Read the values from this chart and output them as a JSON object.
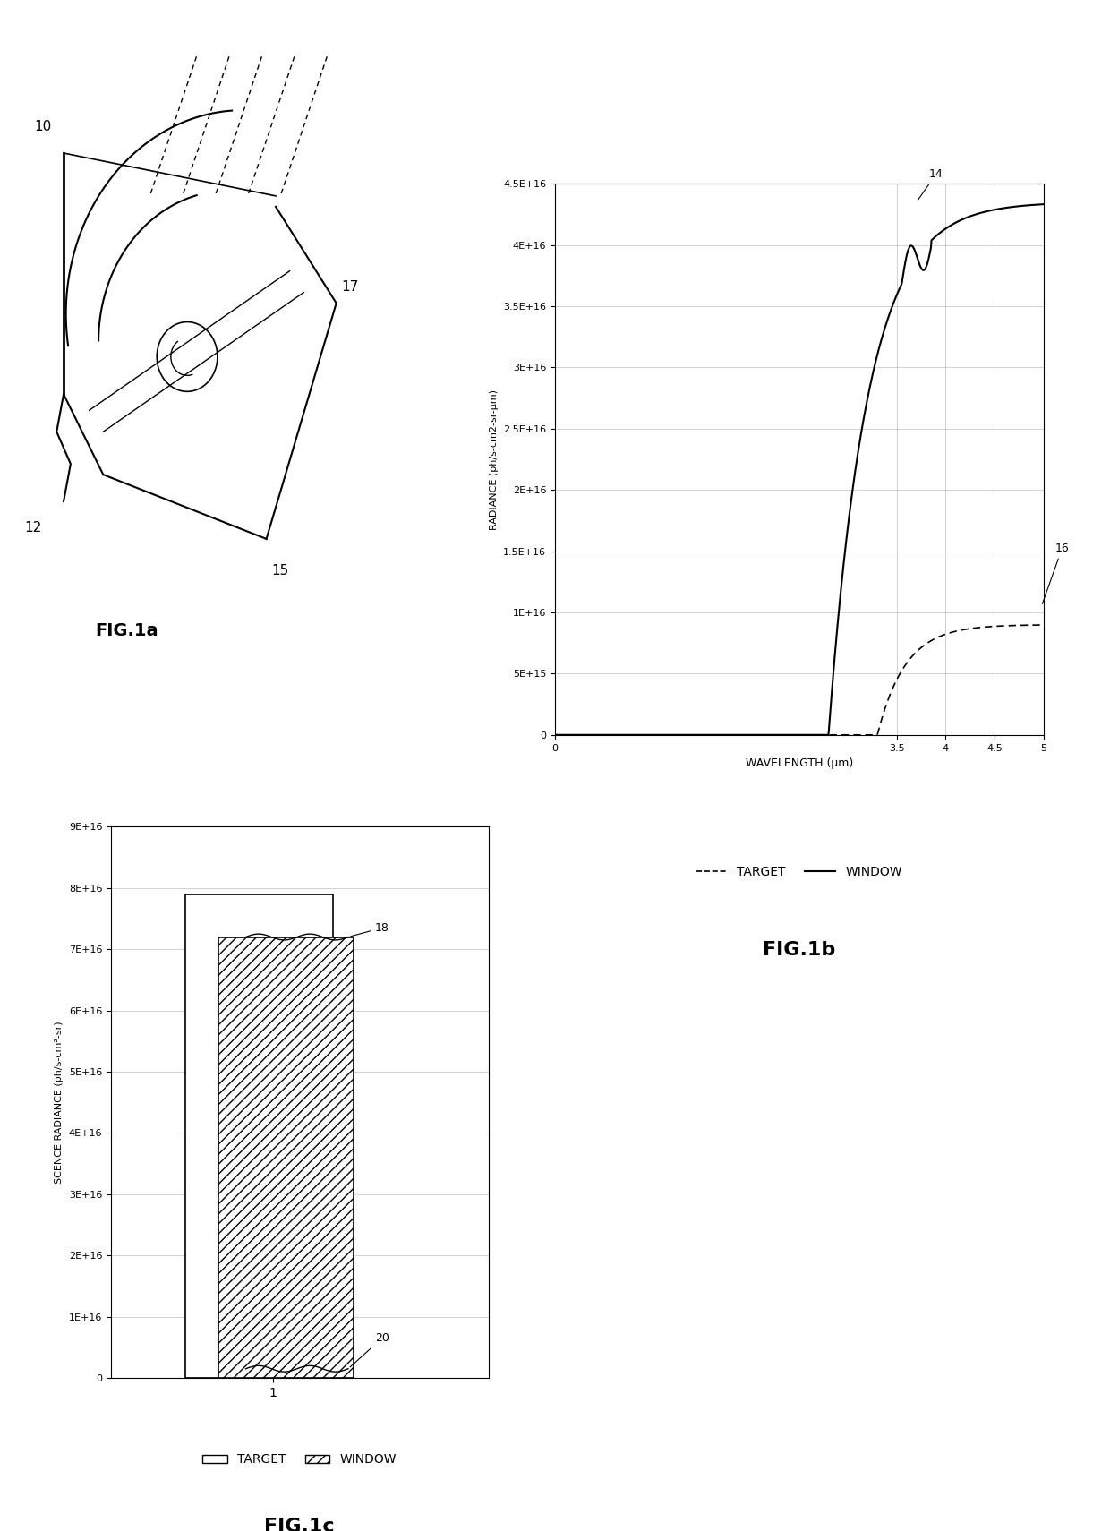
{
  "fig1b": {
    "xlabel": "WAVELENGTH (μm)",
    "ylabel": "RADIANCE (ph/s-cm2-sr-μm)",
    "xlim": [
      0,
      5
    ],
    "ylim": [
      0,
      4.5e+16
    ],
    "yticks": [
      0,
      5000000000000000.0,
      1e+16,
      1.5e+16,
      2e+16,
      2.5e+16,
      3e+16,
      3.5e+16,
      4e+16,
      4.5e+16
    ],
    "ytick_labels": [
      "0",
      "5E+15",
      "1E+16",
      "1.5E+16",
      "2E+16",
      "2.5E+16",
      "3E+16",
      "3.5E+16",
      "4E+16",
      "4.5E+16"
    ],
    "xticks": [
      0,
      3.5,
      4,
      4.5,
      5
    ],
    "label_14": "14",
    "label_16": "16",
    "fig_label": "FIG.1b"
  },
  "fig1c": {
    "fig_label": "FIG.1c",
    "ylabel": "SCENCE RADIANCE (ph/s-cm²-sr)",
    "yticks": [
      0,
      1e+16,
      2e+16,
      3e+16,
      4e+16,
      5e+16,
      6e+16,
      7e+16,
      8e+16,
      9e+16
    ],
    "ytick_labels": [
      "0",
      "1E+16",
      "2E+16",
      "3E+16",
      "4E+16",
      "5E+16",
      "6E+16",
      "7E+16",
      "8E+16",
      "9E+16"
    ],
    "target_value": 7.9e+16,
    "window_value": 7.2e+16,
    "label_18": "18",
    "label_20": "20"
  },
  "fig1a": {
    "fig_label": "FIG.1a",
    "label_10": "10",
    "label_12": "12",
    "label_15": "15",
    "label_17": "17"
  },
  "background_color": "#ffffff",
  "line_color": "#000000"
}
